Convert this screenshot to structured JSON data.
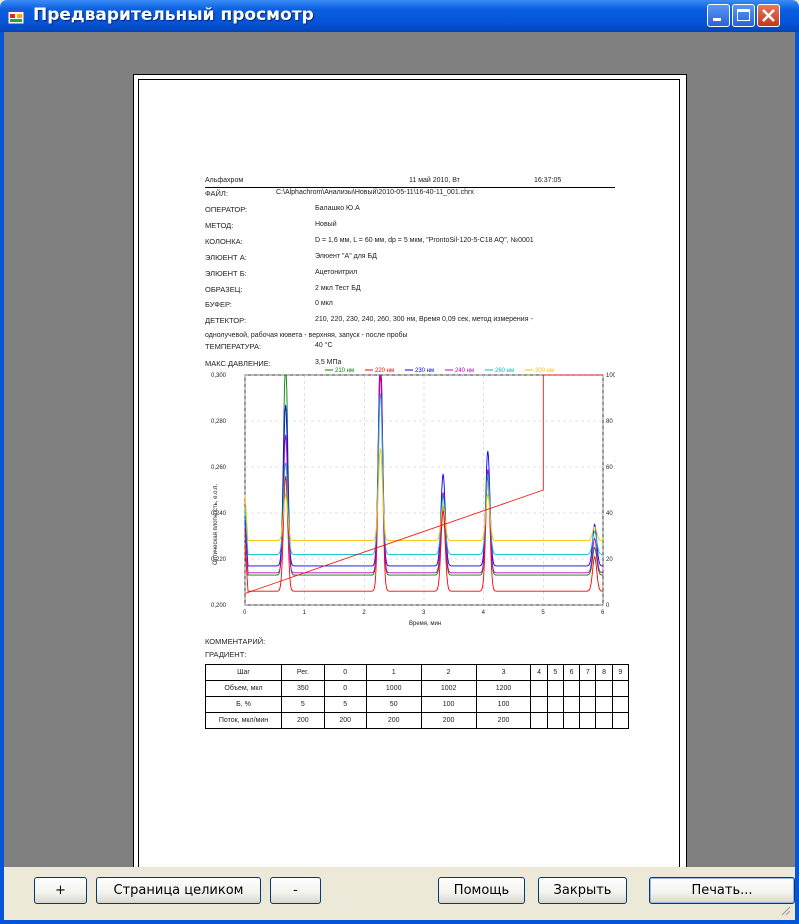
{
  "window": {
    "title": "Предварительный просмотр"
  },
  "report": {
    "app_name": "Альфахром",
    "date": "11 май 2010, Вт",
    "time": "16:37:05",
    "fields": [
      {
        "label": "ФАЙЛ:",
        "value": "C:\\Alphachrom\\Анализы\\Новый\\2010-05-11\\16-40-11_001.chrx"
      },
      {
        "label": "ОПЕРАТОР:",
        "value": "Балашко Ю.А"
      },
      {
        "label": "МЕТОД:",
        "value": "Новый"
      },
      {
        "label": "КОЛОНКА:",
        "value": "D = 1,6 мм, L = 60 мм, dp = 5 мкм, \"ProntoSil-120-5-C18 AQ\", №0001"
      },
      {
        "label": "ЭЛЮЕНТ А:",
        "value": "Элюент \"А\" для БД"
      },
      {
        "label": "ЭЛЮЕНТ Б:",
        "value": "Ацетонитрил"
      },
      {
        "label": "ОБРАЗЕЦ:",
        "value": "2 мкл Тест БД"
      },
      {
        "label": "БУФЕР:",
        "value": "0 мкл"
      },
      {
        "label": "ДЕТЕКТОР:",
        "value": "210, 220, 230, 240, 260, 300 нм, Время 0,09 сек, метод измерения -"
      },
      {
        "label": "ТЕМПЕРАТУРА:",
        "value": "40 °C"
      },
      {
        "label": "МАКС.ДАВЛЕНИЕ:",
        "value": "3,5 МПа"
      }
    ],
    "detector_cont": "однолучевой, рабочая кювета - верхняя, запуск - после пробы",
    "comment_label": "КОММЕНТАРИЙ:",
    "gradient_label": "ГРАДИЕНТ:",
    "gradient_table": {
      "header": [
        "Шаг",
        "Рег.",
        "0",
        "1",
        "2",
        "3",
        "4",
        "5",
        "6",
        "7",
        "8",
        "9"
      ],
      "rows": [
        [
          "Объем, мкл",
          "350",
          "0",
          "1000",
          "1002",
          "1200",
          "",
          "",
          "",
          "",
          "",
          ""
        ],
        [
          "Б, %",
          "5",
          "5",
          "50",
          "100",
          "100",
          "",
          "",
          "",
          "",
          "",
          ""
        ],
        [
          "Поток, мкл/мин",
          "200",
          "200",
          "200",
          "200",
          "200",
          "",
          "",
          "",
          "",
          "",
          ""
        ]
      ]
    }
  },
  "chart_data": {
    "type": "line",
    "xlabel": "Время, мин",
    "ylabel": "Оптическая плотность, е.о.п.",
    "y2label": "Состав элюента, %Б",
    "xlim": [
      0,
      6
    ],
    "x_ticks": [
      "0",
      "1",
      "2",
      "3",
      "4",
      "5",
      "6"
    ],
    "ylim": [
      0.2,
      0.3
    ],
    "y_ticks": [
      "0,200",
      "0,220",
      "0,240",
      "0,260",
      "0,280",
      "0,300"
    ],
    "y2lim": [
      0,
      100
    ],
    "y2_ticks": [
      "0",
      "20",
      "40",
      "60",
      "80",
      "100"
    ],
    "legend": [
      "210 нм",
      "220 нм",
      "230 нм",
      "240 нм",
      "260 нм",
      "300 нм"
    ],
    "legend_colors": [
      "#008000",
      "#ff0000",
      "#0000ff",
      "#c000c0",
      "#00c0c0",
      "#ffc000"
    ],
    "legend_position": "top",
    "grid": true,
    "peaks_x": [
      0.68,
      2.27,
      3.32,
      4.07,
      5.86
    ],
    "gradient_profile": {
      "x": [
        0,
        5,
        5,
        6
      ],
      "y": [
        5,
        50,
        100,
        100
      ]
    }
  },
  "buttons": {
    "zoom_in": "+",
    "full_page": "Страница целиком",
    "zoom_out": "-",
    "help": "Помощь",
    "close": "Закрыть",
    "print": "Печать..."
  },
  "colors": {
    "titlebar": "#0654d8",
    "preview_bg": "#808080",
    "dialog_bg": "#ece9d8"
  }
}
